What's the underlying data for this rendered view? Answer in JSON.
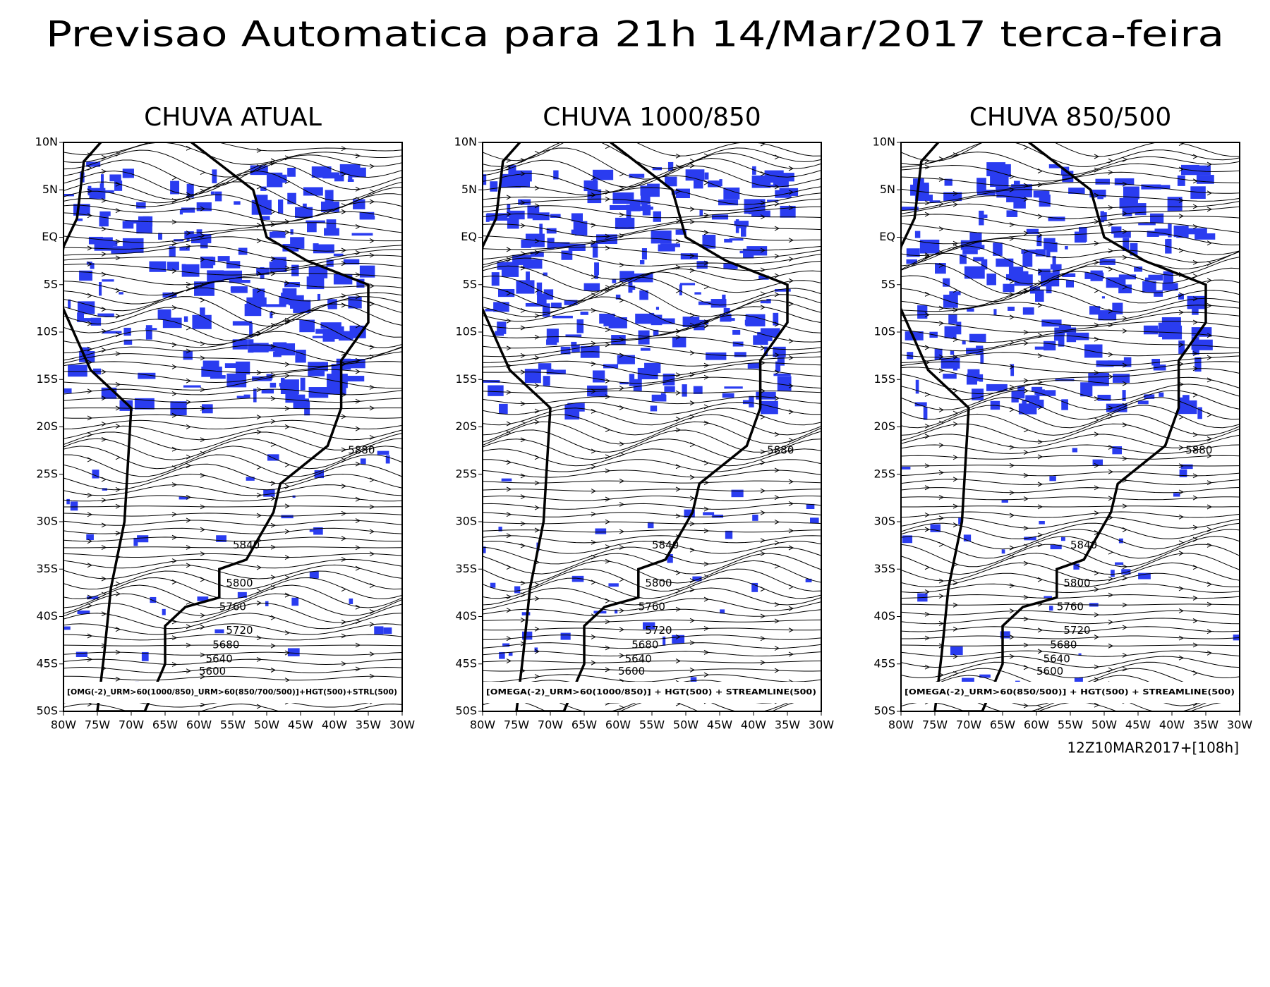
{
  "header": {
    "title": "Previsao Automatica para 21h 14/Mar/2017 terca-feira"
  },
  "axes": {
    "lat_labels": [
      "10N",
      "5N",
      "EQ",
      "5S",
      "10S",
      "15S",
      "20S",
      "25S",
      "30S",
      "35S",
      "40S",
      "45S",
      "50S"
    ],
    "lon_labels": [
      "80W",
      "75W",
      "70W",
      "65W",
      "60W",
      "55W",
      "50W",
      "45W",
      "40W",
      "35W",
      "30W"
    ]
  },
  "contour_labels": [
    "5880",
    "5840",
    "5800",
    "5760",
    "5720",
    "5680",
    "5640",
    "5600"
  ],
  "panels": [
    {
      "title": "CHUVA ATUAL",
      "caption": "[OMG(-2)_URM>60(1000/850)_URM>60(850/700/500)]+HGT(500)+STRL(500)"
    },
    {
      "title": "CHUVA 1000/850",
      "caption": "[OMEGA(-2)_URM>60(1000/850)] + HGT(500) + STREAMLINE(500)"
    },
    {
      "title": "CHUVA 850/500",
      "caption": "[OMEGA(-2)_URM>60(850/500)] + HGT(500) + STREAMLINE(500)"
    }
  ],
  "footer": {
    "run": "12Z10MAR2017+[108h]"
  }
}
